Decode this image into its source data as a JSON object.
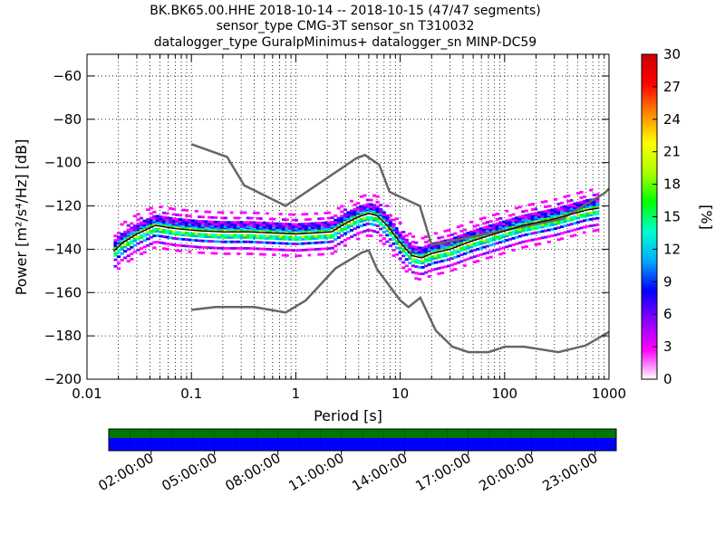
{
  "chart_data": {
    "type": "heatmap",
    "title_lines": [
      "BK.BK65.00.HHE   2018-10-14 -- 2018-10-15  (47/47 segments)",
      "sensor_type CMG-3T sensor_sn T310032",
      "datalogger_type GuralpMinimus+ datalogger_sn MINP-DC59"
    ],
    "xlabel": "Period [s]",
    "ylabel": "Power [m²/s⁴/Hz] [dB]",
    "x_scale": "log",
    "xlim": [
      0.01,
      1000
    ],
    "ylim": [
      -200,
      -50
    ],
    "x_ticks": [
      {
        "v": 0.01,
        "label": "0.01"
      },
      {
        "v": 0.1,
        "label": "0.1"
      },
      {
        "v": 1,
        "label": "1"
      },
      {
        "v": 10,
        "label": "10"
      },
      {
        "v": 100,
        "label": "100"
      },
      {
        "v": 1000,
        "label": "1000"
      }
    ],
    "y_ticks": [
      {
        "v": -60,
        "label": "−60"
      },
      {
        "v": -80,
        "label": "−80"
      },
      {
        "v": -100,
        "label": "−100"
      },
      {
        "v": -120,
        "label": "−120"
      },
      {
        "v": -140,
        "label": "−140"
      },
      {
        "v": -160,
        "label": "−160"
      },
      {
        "v": -180,
        "label": "−180"
      },
      {
        "v": -200,
        "label": "−200"
      }
    ],
    "grid": true,
    "colorbar": {
      "label": "[%]",
      "range": [
        0,
        30
      ],
      "ticks": [
        {
          "v": 0,
          "label": "0"
        },
        {
          "v": 3,
          "label": "3"
        },
        {
          "v": 6,
          "label": "6"
        },
        {
          "v": 9,
          "label": "9"
        },
        {
          "v": 12,
          "label": "12"
        },
        {
          "v": 15,
          "label": "15"
        },
        {
          "v": 18,
          "label": "18"
        },
        {
          "v": 21,
          "label": "21"
        },
        {
          "v": 24,
          "label": "24"
        },
        {
          "v": 27,
          "label": "27"
        },
        {
          "v": 30,
          "label": "30"
        }
      ],
      "colors": [
        "#ffffff",
        "#ff00ff",
        "#8800ff",
        "#0000ff",
        "#00aaff",
        "#00ffcc",
        "#00ff00",
        "#aaff00",
        "#ffff00",
        "#ff8800",
        "#ff0000",
        "#cc0000"
      ]
    },
    "series": [
      {
        "name": "",
        "role": "noise_model_high",
        "color": "#666666",
        "points": [
          [
            0.1,
            -91.5
          ],
          [
            0.22,
            -97.4
          ],
          [
            0.32,
            -110.5
          ],
          [
            0.8,
            -120
          ],
          [
            3.8,
            -98
          ],
          [
            4.6,
            -96.5
          ],
          [
            6.3,
            -101
          ],
          [
            7.9,
            -113.5
          ],
          [
            15.4,
            -120
          ],
          [
            20,
            -138
          ],
          [
            354,
            -126
          ],
          [
            912,
            -114
          ],
          [
            1000,
            -112
          ]
        ]
      },
      {
        "name": "",
        "role": "noise_model_low",
        "color": "#666666",
        "points": [
          [
            0.1,
            -168
          ],
          [
            0.17,
            -166.7
          ],
          [
            0.4,
            -166.7
          ],
          [
            0.8,
            -169.2
          ],
          [
            1.24,
            -163.7
          ],
          [
            2.4,
            -148.8
          ],
          [
            4.3,
            -141.5
          ],
          [
            5,
            -140.5
          ],
          [
            6,
            -149.2
          ],
          [
            10,
            -163.6
          ],
          [
            12,
            -166.7
          ],
          [
            15.6,
            -162.4
          ],
          [
            21.9,
            -177.5
          ],
          [
            31.6,
            -185
          ],
          [
            45,
            -187.5
          ],
          [
            70,
            -187.5
          ],
          [
            101,
            -185
          ],
          [
            154,
            -185
          ],
          [
            328,
            -187.5
          ],
          [
            600,
            -184.4
          ],
          [
            1000,
            -178.2
          ]
        ]
      },
      {
        "name": "",
        "role": "psd_mode",
        "color": "#000000",
        "points": [
          [
            0.018,
            -141
          ],
          [
            0.022,
            -137
          ],
          [
            0.03,
            -133
          ],
          [
            0.045,
            -129
          ],
          [
            0.07,
            -130.5
          ],
          [
            0.12,
            -131.5
          ],
          [
            0.2,
            -132
          ],
          [
            0.35,
            -132
          ],
          [
            0.6,
            -132.5
          ],
          [
            1,
            -133
          ],
          [
            1.5,
            -132.5
          ],
          [
            2.2,
            -132
          ],
          [
            3,
            -128
          ],
          [
            4,
            -125
          ],
          [
            5,
            -123.5
          ],
          [
            6,
            -124.5
          ],
          [
            7.5,
            -129
          ],
          [
            10,
            -137
          ],
          [
            13,
            -143
          ],
          [
            16,
            -144
          ],
          [
            20,
            -142
          ],
          [
            30,
            -140
          ],
          [
            50,
            -136
          ],
          [
            80,
            -133
          ],
          [
            150,
            -129
          ],
          [
            300,
            -126
          ],
          [
            600,
            -122
          ],
          [
            800,
            -121
          ]
        ]
      }
    ],
    "psd_mode_offsets": [
      -10.5,
      -8,
      -5,
      -3,
      -2,
      0,
      0,
      0,
      0.5,
      1,
      1.5,
      2,
      3,
      4,
      6,
      8.5
    ],
    "psd_mode_offset_pct": [
      1,
      4,
      8,
      13,
      16,
      28,
      28,
      28,
      17,
      13,
      10,
      8,
      6,
      5,
      2,
      1
    ]
  },
  "time_axis": {
    "tick_labels": [
      "02:00:00",
      "05:00:00",
      "08:00:00",
      "11:00:00",
      "14:00:00",
      "17:00:00",
      "20:00:00",
      "23:00:00"
    ],
    "top_color": "#007700",
    "bottom_color": "#0000ff"
  }
}
